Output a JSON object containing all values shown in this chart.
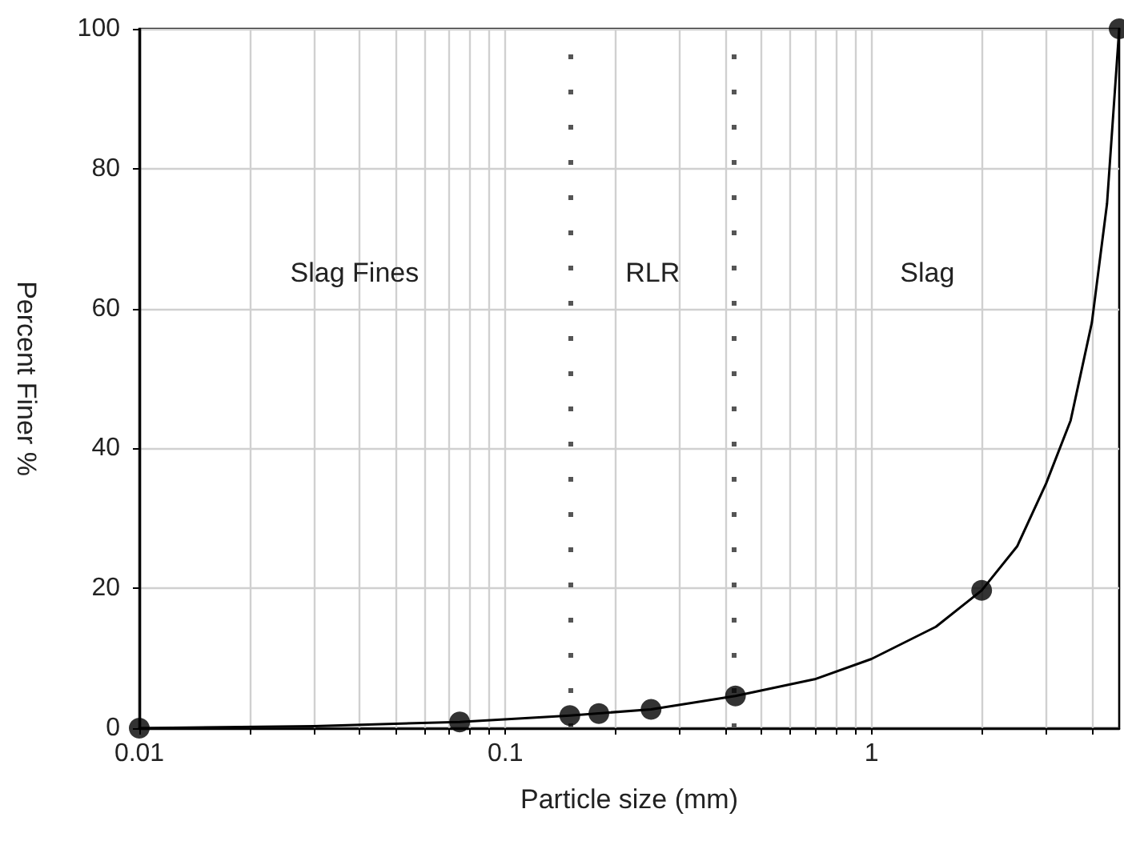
{
  "chart_data": {
    "type": "scatter",
    "xlabel": "Particle size (mm)",
    "ylabel": "Percent Finer %",
    "log": "x",
    "grid": true,
    "marker": "circle",
    "xlim": [
      0.01,
      4.75
    ],
    "ylim": [
      0,
      100
    ],
    "xticks": [
      0.01,
      {
        "value": 0.02,
        "label": null
      },
      {
        "value": 0.03,
        "label": null
      },
      {
        "value": 0.04,
        "label": null
      },
      {
        "value": 0.05,
        "label": null
      },
      {
        "value": 0.06,
        "label": null
      },
      {
        "value": 0.07,
        "label": null
      },
      {
        "value": 0.08,
        "label": null
      },
      {
        "value": 0.09,
        "label": null
      },
      0.1,
      {
        "value": 0.2,
        "label": null
      },
      {
        "value": 0.3,
        "label": null
      },
      {
        "value": 0.4,
        "label": null
      },
      {
        "value": 0.5,
        "label": null
      },
      {
        "value": 0.6,
        "label": null
      },
      {
        "value": 0.7,
        "label": null
      },
      {
        "value": 0.8,
        "label": null
      },
      {
        "value": 0.9,
        "label": null
      },
      1,
      {
        "value": 2,
        "label": null
      },
      {
        "value": 3,
        "label": null
      },
      {
        "value": 4,
        "label": null
      }
    ],
    "yticks": [
      0,
      20,
      40,
      60,
      80,
      100
    ],
    "series": [
      {
        "color": "#000000",
        "x": [
          0.01,
          0.075,
          0.15,
          0.18,
          0.25,
          0.425,
          2.0,
          4.75
        ],
        "values": [
          0,
          0.9,
          1.8,
          2.1,
          2.7,
          4.6,
          19.7,
          100
        ]
      },
      {
        "type": "line",
        "color": "#000000",
        "marker": "none",
        "line_style": "solid",
        "x": [
          0.01,
          0.03,
          0.075,
          0.15,
          0.25,
          0.425,
          0.7,
          1,
          1.5,
          2,
          2.5,
          3,
          3.5,
          4,
          4.4,
          4.75
        ],
        "values": [
          0,
          0.3,
          0.9,
          1.8,
          2.7,
          4.6,
          7,
          9.9,
          14.5,
          19.7,
          26,
          35,
          44,
          58,
          75,
          100
        ]
      }
    ],
    "ref_lines": [
      {
        "axis": "x",
        "value": 0.15,
        "color": "#555555",
        "line_style": "dashed"
      },
      {
        "axis": "x",
        "value": 0.425,
        "color": "#555555",
        "line_style": "dashed"
      }
    ],
    "annotations": [
      "Slag Fines",
      "RLR",
      "Slag"
    ]
  }
}
